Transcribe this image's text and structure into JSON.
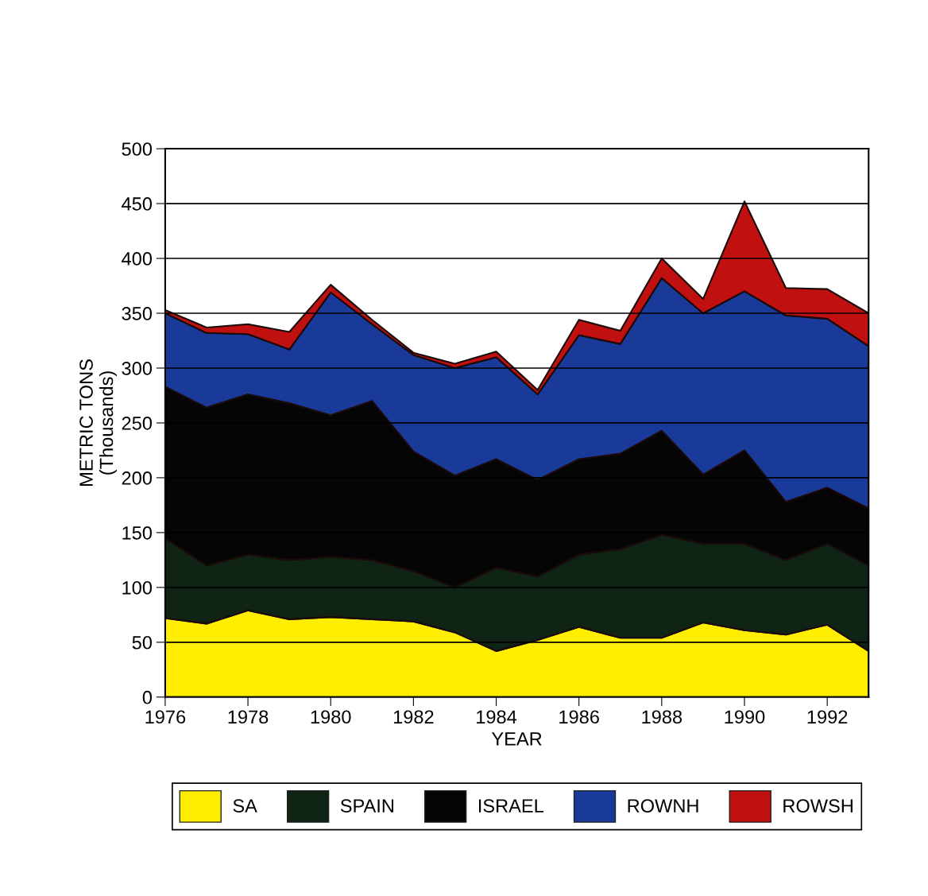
{
  "chart_data": {
    "type": "area",
    "stacked": true,
    "xlabel": "YEAR",
    "ylabel": "METRIC TONS\n(Thousands)",
    "x": [
      1976,
      1977,
      1978,
      1979,
      1980,
      1981,
      1982,
      1983,
      1984,
      1985,
      1986,
      1987,
      1988,
      1989,
      1990,
      1991,
      1992,
      1993
    ],
    "xlim": [
      1976,
      1993
    ],
    "xticks": [
      1976,
      1978,
      1980,
      1982,
      1984,
      1986,
      1988,
      1990,
      1992
    ],
    "ylim": [
      0,
      500
    ],
    "yticks": [
      0,
      50,
      100,
      150,
      200,
      250,
      300,
      350,
      400,
      450,
      500
    ],
    "grid": "y",
    "legend": "bottom",
    "series": [
      {
        "name": "SA",
        "color": "#ffee00",
        "values": [
          72,
          67,
          79,
          71,
          73,
          71,
          69,
          59,
          42,
          52,
          64,
          54,
          54,
          68,
          61,
          57,
          66,
          42
        ]
      },
      {
        "name": "SPAIN",
        "color": "#0f2414",
        "values": [
          73,
          53,
          51,
          54,
          55,
          54,
          46,
          41,
          76,
          58,
          66,
          81,
          94,
          72,
          79,
          68,
          74,
          78
        ]
      },
      {
        "name": "ISRAEL",
        "color": "#050505",
        "values": [
          138,
          144,
          146,
          143,
          129,
          145,
          109,
          102,
          99,
          88,
          87,
          87,
          95,
          63,
          85,
          53,
          51,
          52
        ]
      },
      {
        "name": "ROWNH",
        "color": "#1a3a9a",
        "values": [
          67,
          68,
          55,
          49,
          112,
          70,
          88,
          98,
          93,
          78,
          113,
          100,
          139,
          147,
          145,
          170,
          154,
          148
        ]
      },
      {
        "name": "ROWSH",
        "color": "#c01010",
        "values": [
          3,
          5,
          9,
          16,
          7,
          4,
          2,
          4,
          5,
          4,
          14,
          12,
          18,
          13,
          82,
          25,
          27,
          30
        ]
      }
    ]
  }
}
